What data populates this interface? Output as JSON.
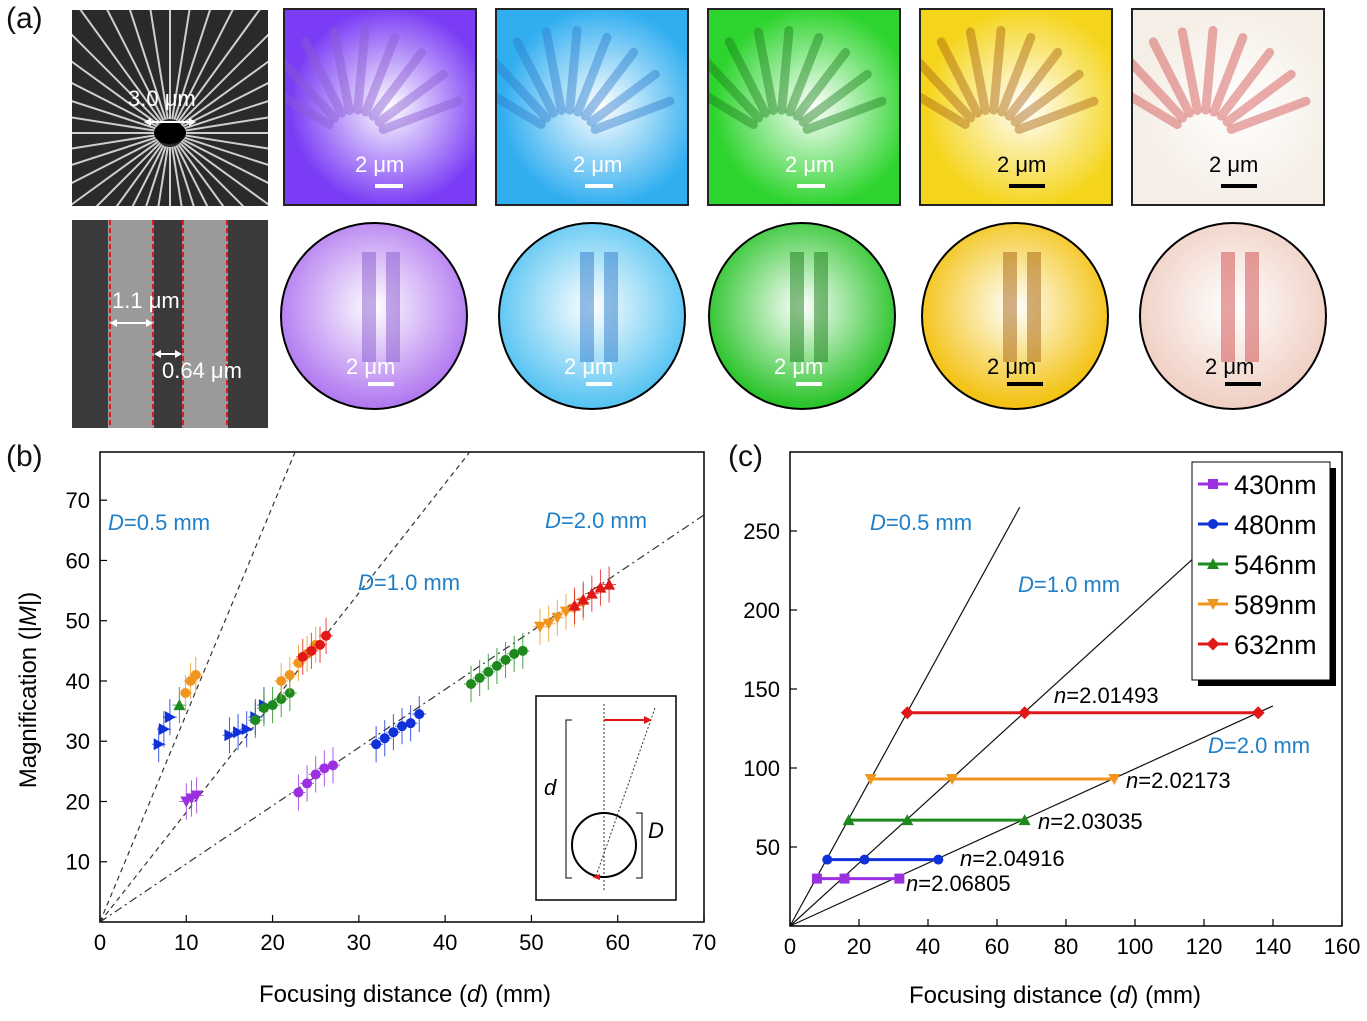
{
  "panel_labels": {
    "a": "(a)",
    "b": "(b)",
    "c": "(c)"
  },
  "panel_a": {
    "sem_top_label": "3.0 μm",
    "sem_bottom_label_1": "1.1 μm",
    "sem_bottom_label_2": "0.64 μm",
    "scale_label": "2 μm",
    "top_colors": [
      "#7a3cf5",
      "#31aef0",
      "#2dd42d",
      "#f5d51c",
      "#f5eee6"
    ],
    "bottom_colors": [
      "#b27af0",
      "#58c4f2",
      "#2bc42b",
      "#f3c212",
      "#f0d0c4"
    ],
    "stripe_colors": [
      "#8a5cd0",
      "#2f7ccc",
      "#1a7e1a",
      "#a86210",
      "#d04a4a"
    ]
  },
  "panel_b": {
    "xlabel_pre": "Focusing distance (",
    "xlabel_var": "d",
    "xlabel_post": ") (mm)",
    "ylabel_pre": "Magnification (|",
    "ylabel_var": "M",
    "ylabel_post": "|)",
    "xticks": [
      "0",
      "10",
      "20",
      "30",
      "40",
      "50",
      "60",
      "70"
    ],
    "yticks": [
      "10",
      "20",
      "30",
      "40",
      "50",
      "60",
      "70"
    ],
    "annotations": {
      "d05_var": "D",
      "d05_val": "=0.5 mm",
      "d10_var": "D",
      "d10_val": "=1.0 mm",
      "d20_var": "D",
      "d20_val": "=2.0 mm"
    },
    "inset": {
      "d_label": "d",
      "D_label": "D"
    }
  },
  "panel_c": {
    "xlabel_pre": "Focusing distance (",
    "xlabel_var": "d",
    "xlabel_post": ") (mm)",
    "xticks": [
      "0",
      "20",
      "40",
      "60",
      "80",
      "100",
      "120",
      "140",
      "160"
    ],
    "yticks": [
      "50",
      "100",
      "150",
      "200",
      "250"
    ],
    "annotations": {
      "d05_var": "D",
      "d05_val": "=0.5 mm",
      "d10_var": "D",
      "d10_val": "=1.0 mm",
      "d20_var": "D",
      "d20_val": "=2.0 mm"
    },
    "n_labels": [
      {
        "var": "n",
        "val": "=2.01493"
      },
      {
        "var": "n",
        "val": "=2.02173"
      },
      {
        "var": "n",
        "val": "=2.03035"
      },
      {
        "var": "n",
        "val": "=2.04916"
      },
      {
        "var": "n",
        "val": "=2.06805"
      }
    ],
    "legend": [
      "430nm",
      "480nm",
      "546nm",
      "589nm",
      "632nm"
    ]
  },
  "colors": {
    "violet": "#9b30e0",
    "blue": "#1030d8",
    "green": "#1e8a1e",
    "orange": "#f0961e",
    "red": "#e01818",
    "annotation_blue": "#1f7fc8"
  },
  "chart_data": [
    {
      "type": "scatter",
      "title": "",
      "xlabel": "Focusing distance (d) (mm)",
      "ylabel": "Magnification (|M|)",
      "xlim": [
        0,
        70
      ],
      "ylim": [
        0,
        78
      ],
      "grid": false,
      "series": [
        {
          "color": "#1030d8",
          "marker": "triangle-right",
          "x": [
            6.8,
            7.4,
            8.1
          ],
          "y": [
            29.5,
            32,
            34
          ]
        },
        {
          "color": "#1e8a1e",
          "marker": "triangle-up",
          "x": [
            9.2
          ],
          "y": [
            36
          ]
        },
        {
          "color": "#f0961e",
          "marker": "circle",
          "x": [
            9.9,
            10.5,
            11.1
          ],
          "y": [
            38,
            40,
            41
          ]
        },
        {
          "color": "#9b30e0",
          "marker": "triangle-down",
          "x": [
            10,
            10.6,
            11.2
          ],
          "y": [
            20,
            20.5,
            21
          ]
        },
        {
          "color": "#1030d8",
          "marker": "triangle-right",
          "x": [
            15,
            16,
            17,
            18,
            19
          ],
          "y": [
            31,
            31.5,
            32,
            34,
            36
          ]
        },
        {
          "color": "#1e8a1e",
          "marker": "circle",
          "x": [
            18,
            19,
            20,
            21,
            22
          ],
          "y": [
            33.5,
            35.5,
            36,
            37,
            38
          ]
        },
        {
          "color": "#f0961e",
          "marker": "circle",
          "x": [
            21,
            22,
            23,
            24,
            25
          ],
          "y": [
            40,
            41,
            43,
            44.5,
            46
          ]
        },
        {
          "color": "#e01818",
          "marker": "circle",
          "x": [
            23.5,
            24.5,
            25.5,
            26.2
          ],
          "y": [
            44,
            45,
            46,
            47.5
          ]
        },
        {
          "color": "#9b30e0",
          "marker": "circle",
          "x": [
            23,
            24,
            25,
            26,
            27
          ],
          "y": [
            21.5,
            23,
            24.5,
            25.5,
            26
          ]
        },
        {
          "color": "#1030d8",
          "marker": "circle",
          "x": [
            32,
            33,
            34,
            35,
            36,
            37
          ],
          "y": [
            29.5,
            30.5,
            31.5,
            32.5,
            33,
            34.5
          ]
        },
        {
          "color": "#1e8a1e",
          "marker": "circle",
          "x": [
            43,
            44,
            45,
            46,
            47,
            48,
            49
          ],
          "y": [
            39.5,
            40.5,
            41.5,
            42.5,
            43.5,
            44.5,
            45
          ]
        },
        {
          "color": "#f0961e",
          "marker": "triangle-down",
          "x": [
            51,
            52,
            53,
            54,
            55,
            56
          ],
          "y": [
            49,
            49.5,
            50.5,
            51.5,
            52,
            53
          ]
        },
        {
          "color": "#e01818",
          "marker": "triangle-up",
          "x": [
            55,
            56,
            57,
            58,
            59
          ],
          "y": [
            52.5,
            53.5,
            54.5,
            55.5,
            56
          ]
        }
      ],
      "reference_lines": [
        {
          "label": "D=0.5 mm",
          "slope": 3.45
        },
        {
          "label": "D=1.0 mm",
          "slope": 1.82
        },
        {
          "label": "D=2.0 mm",
          "slope": 0.965
        }
      ]
    },
    {
      "type": "line",
      "title": "",
      "xlabel": "Focusing distance (d) (mm)",
      "ylabel": "",
      "xlim": [
        0,
        160
      ],
      "ylim": [
        0,
        300
      ],
      "grid": false,
      "legend_position": "top-right",
      "series": [
        {
          "name": "430nm",
          "color": "#9b30e0",
          "marker": "square",
          "x": [
            7.8,
            15.8,
            31.7
          ],
          "y": [
            30,
            30,
            30
          ],
          "label": "n=2.06805"
        },
        {
          "name": "480nm",
          "color": "#1030d8",
          "marker": "circle",
          "x": [
            10.8,
            21.6,
            43
          ],
          "y": [
            42,
            42,
            42
          ],
          "label": "n=2.04916"
        },
        {
          "name": "546nm",
          "color": "#1e8a1e",
          "marker": "triangle-up",
          "x": [
            17,
            34,
            68
          ],
          "y": [
            67,
            67,
            67
          ],
          "label": "n=2.03035"
        },
        {
          "name": "589nm",
          "color": "#f0961e",
          "marker": "triangle-down",
          "x": [
            23.4,
            47,
            94
          ],
          "y": [
            93,
            93,
            93
          ],
          "label": "n=2.02173"
        },
        {
          "name": "632nm",
          "color": "#e01818",
          "marker": "diamond",
          "x": [
            34,
            68,
            135.7
          ],
          "y": [
            135,
            135,
            135
          ],
          "label": "n=2.01493"
        }
      ],
      "reference_lines": [
        {
          "label": "D=0.5 mm",
          "slope": 3.98
        },
        {
          "label": "D=1.0 mm",
          "slope": 1.99
        },
        {
          "label": "D=2.0 mm",
          "slope": 0.995
        }
      ]
    }
  ]
}
